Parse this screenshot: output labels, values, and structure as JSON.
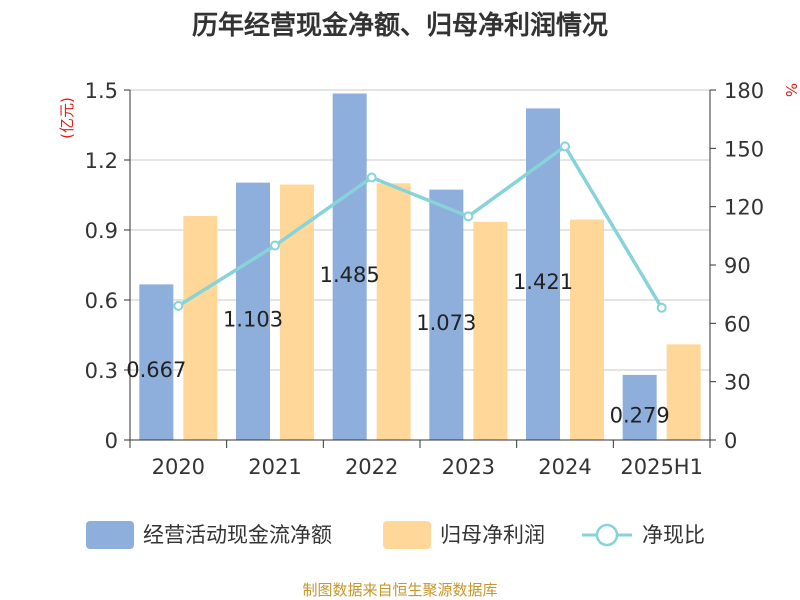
{
  "chart_data": {
    "type": "bar",
    "title": "历年经营现金净额、归母净利润情况",
    "categories": [
      "2020",
      "2021",
      "2022",
      "2023",
      "2024",
      "2025H1"
    ],
    "series": [
      {
        "name": "经营活动现金流净额",
        "type": "bar",
        "axis": "left",
        "color": "#8eaedb",
        "values": [
          0.667,
          1.103,
          1.485,
          1.073,
          1.421,
          0.279
        ],
        "labels": [
          "0.667",
          "1.103",
          "1.485",
          "1.073",
          "1.421",
          "0.279"
        ]
      },
      {
        "name": "归母净利润",
        "type": "bar",
        "axis": "left",
        "color": "#ffd899",
        "values": [
          0.96,
          1.095,
          1.1,
          0.935,
          0.945,
          0.41
        ]
      },
      {
        "name": "净现比",
        "type": "line",
        "axis": "right",
        "color": "#86d3da",
        "values": [
          69,
          100,
          135,
          115,
          151,
          68
        ]
      }
    ],
    "left_axis": {
      "unit": "(亿元)",
      "ylim": [
        0,
        1.5
      ],
      "ticks": [
        "0",
        "0.3",
        "0.6",
        "0.9",
        "1.2",
        "1.5"
      ]
    },
    "right_axis": {
      "unit": "%",
      "ylim": [
        0,
        180
      ],
      "ticks": [
        "0",
        "30",
        "60",
        "90",
        "120",
        "150",
        "180"
      ]
    },
    "grid": true,
    "legend_position": "bottom"
  },
  "footer": {
    "source": "制图数据来自恒生聚源数据库"
  }
}
